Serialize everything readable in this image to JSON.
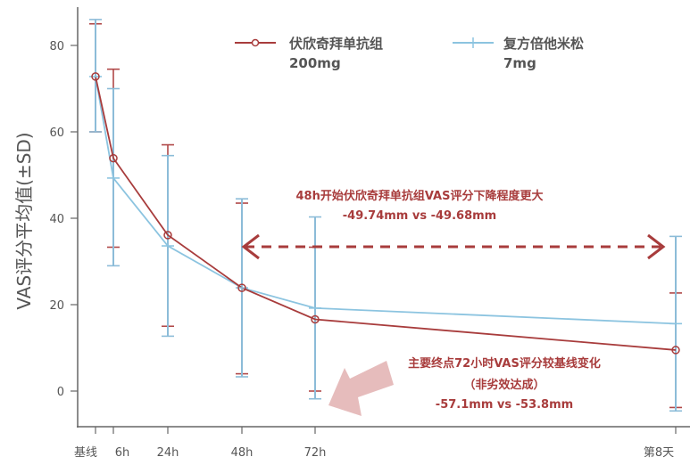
{
  "chart_data": {
    "type": "line",
    "title": "",
    "xlabel": "",
    "ylabel": "VAS评分平均值(±SD)",
    "ylim": [
      -9,
      88
    ],
    "yticks": [
      0,
      20,
      40,
      60,
      80
    ],
    "grid": false,
    "legend_position": "top-right",
    "categories": [
      "基线",
      "6h",
      "24h",
      "48h",
      "72h",
      "第8天"
    ],
    "series": [
      {
        "name": "伏欣奇拜单抗组 200mg",
        "legend_line1": "伏欣奇拜单抗组",
        "legend_line2": "200mg",
        "color": "#a83c3c",
        "marker": "circle",
        "values": [
          72.8,
          53.9,
          36.1,
          23.9,
          16.6,
          9.5
        ],
        "sd_upper": [
          85.0,
          74.5,
          57.0,
          43.5,
          33.3,
          22.7
        ],
        "sd_lower": [
          60.0,
          33.3,
          15.0,
          4.0,
          0.0,
          -3.8
        ]
      },
      {
        "name": "复方倍他米松 7mg",
        "legend_line1": "复方倍他米松",
        "legend_line2": "7mg",
        "color": "#8cc4e0",
        "marker": "plus",
        "values": [
          72.8,
          49.3,
          33.6,
          23.9,
          19.2,
          15.6
        ],
        "sd_upper": [
          86.0,
          70.0,
          54.5,
          44.5,
          40.3,
          35.8
        ],
        "sd_lower": [
          60.0,
          29.0,
          12.7,
          3.3,
          -1.8,
          -4.6
        ]
      }
    ],
    "annotations": [
      {
        "line1": "48h开始伏欣奇拜单抗组VAS评分下降程度更大",
        "line2": "-49.74mm vs -49.68mm",
        "color": "#a83c3c",
        "arrow": "dashed double arrow from 48h to 第8天 at y≈33.5"
      },
      {
        "line1": "主要终点72小时VAS评分较基线变化",
        "line2": "（非劣效达成）",
        "line3": "-57.1mm vs -53.8mm",
        "color": "#a83c3c",
        "arrow": "large light pink arrow pointing toward 72h near y=0",
        "arrow_color": "#e6bcbc"
      }
    ]
  }
}
